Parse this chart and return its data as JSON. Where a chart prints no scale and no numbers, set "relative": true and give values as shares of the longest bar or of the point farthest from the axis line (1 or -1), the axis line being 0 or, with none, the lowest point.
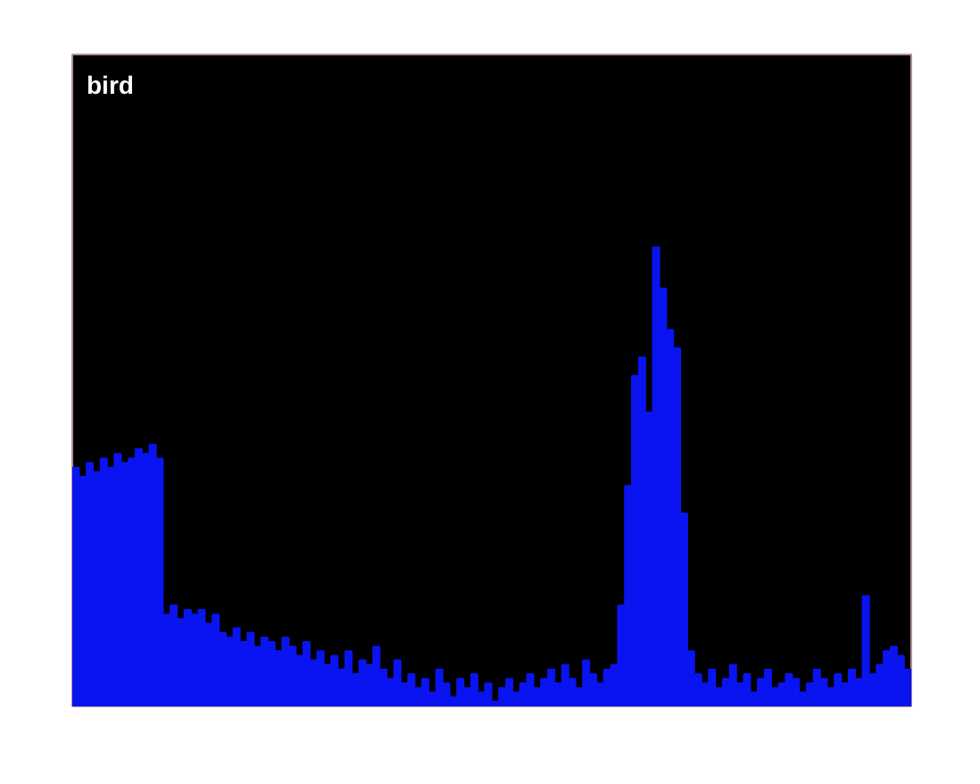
{
  "chart_data": {
    "type": "bar",
    "title": "bird",
    "relative": true,
    "color": "#0a14f0",
    "categories": [
      null,
      null,
      null,
      null,
      null,
      null,
      null,
      null,
      null,
      null,
      null,
      null,
      null,
      null,
      null,
      null,
      null,
      null,
      null,
      null,
      null,
      null,
      null,
      null,
      null,
      null,
      null,
      null,
      null,
      null,
      null,
      null,
      null,
      null,
      null,
      null,
      null,
      null,
      null,
      null,
      null,
      null,
      null,
      null,
      null,
      null,
      null,
      null,
      null,
      null,
      null,
      null,
      null,
      null,
      null,
      null,
      null,
      null,
      null,
      null,
      null,
      null,
      null,
      null,
      null,
      null,
      null,
      null,
      null,
      null,
      null,
      null,
      null,
      null,
      null,
      null,
      null,
      null,
      null,
      null,
      null,
      null,
      null,
      null,
      null,
      null,
      null,
      null,
      null,
      null,
      null,
      null,
      null,
      null,
      null,
      null,
      null,
      null,
      null,
      null,
      null,
      null,
      null,
      null,
      null,
      null,
      null,
      null,
      null,
      null,
      null,
      null,
      null,
      null,
      null,
      null,
      null,
      null,
      null,
      null
    ],
    "values": [
      0.52,
      0.5,
      0.53,
      0.51,
      0.54,
      0.52,
      0.55,
      0.53,
      0.54,
      0.56,
      0.55,
      0.57,
      0.54,
      0.2,
      0.22,
      0.19,
      0.21,
      0.2,
      0.21,
      0.18,
      0.2,
      0.16,
      0.15,
      0.17,
      0.14,
      0.16,
      0.13,
      0.15,
      0.14,
      0.12,
      0.15,
      0.13,
      0.11,
      0.14,
      0.1,
      0.12,
      0.09,
      0.11,
      0.08,
      0.12,
      0.07,
      0.1,
      0.09,
      0.13,
      0.08,
      0.06,
      0.1,
      0.05,
      0.07,
      0.04,
      0.06,
      0.03,
      0.08,
      0.05,
      0.02,
      0.06,
      0.04,
      0.07,
      0.03,
      0.05,
      0.01,
      0.04,
      0.06,
      0.03,
      0.05,
      0.07,
      0.04,
      0.06,
      0.08,
      0.05,
      0.09,
      0.06,
      0.04,
      0.1,
      0.07,
      0.05,
      0.08,
      0.09,
      0.22,
      0.48,
      0.72,
      0.76,
      0.64,
      1.0,
      0.91,
      0.82,
      0.78,
      0.42,
      0.12,
      0.07,
      0.05,
      0.08,
      0.04,
      0.06,
      0.09,
      0.05,
      0.07,
      0.03,
      0.06,
      0.08,
      0.04,
      0.05,
      0.07,
      0.06,
      0.03,
      0.05,
      0.08,
      0.06,
      0.04,
      0.07,
      0.05,
      0.08,
      0.06,
      0.24,
      0.07,
      0.09,
      0.12,
      0.13,
      0.11,
      0.08
    ]
  }
}
